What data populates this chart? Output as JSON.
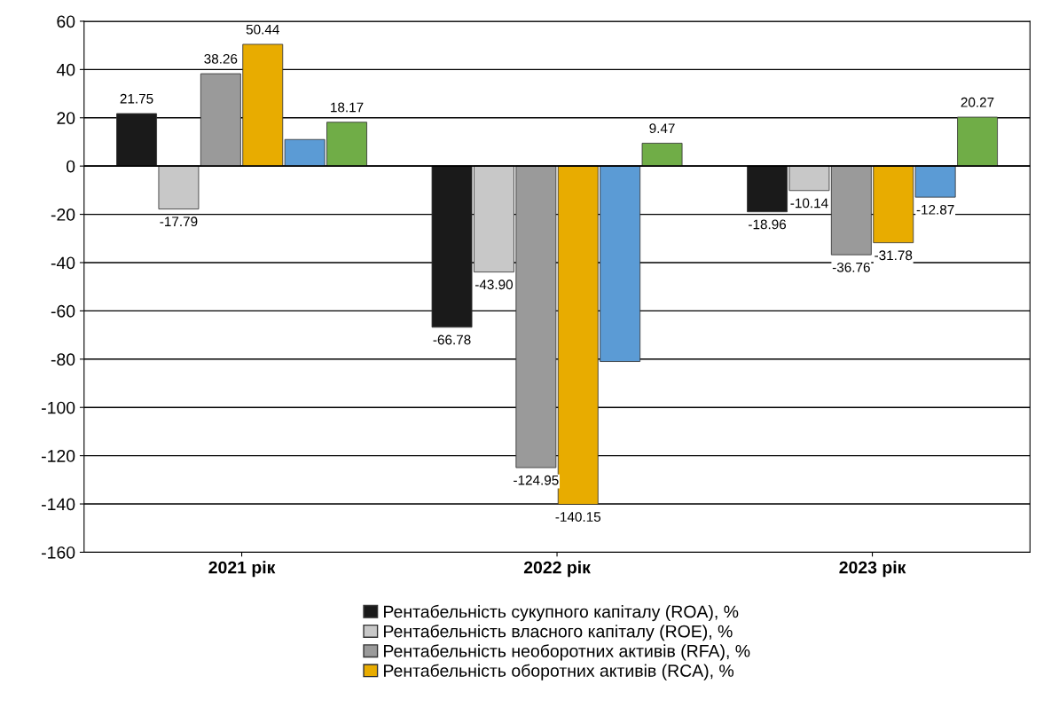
{
  "chart_data": {
    "type": "bar",
    "categories": [
      "2021 рік",
      "2022 рік",
      "2023 рік"
    ],
    "series": [
      {
        "name": "Рентабельність сукупного капіталу (ROA), %",
        "color": "#1a1a1a",
        "values": [
          21.75,
          -66.78,
          -18.96
        ],
        "value_labels": [
          "21.75",
          "-66.78",
          "-18.96"
        ]
      },
      {
        "name": "Рентабельність власного капіталу (ROE), %",
        "color": "#c8c8c8",
        "values": [
          -17.79,
          -43.9,
          -10.14
        ],
        "value_labels": [
          "-17.79",
          "-43.90",
          "-10.14"
        ]
      },
      {
        "name": "Рентабельність необоротних активів (RFA), %",
        "color": "#9a9a9a",
        "values": [
          38.26,
          -124.95,
          -36.76
        ],
        "value_labels": [
          "38.26",
          "-124.95",
          "-36.76"
        ]
      },
      {
        "name": "Рентабельність оборотних активів (RCA), %",
        "color": "#e8ac00",
        "values": [
          50.44,
          -140.15,
          -31.78
        ],
        "value_labels": [
          "50.44",
          "-140.15",
          "-31.78"
        ]
      },
      {
        "color": "#5b9bd5",
        "values": [
          11,
          -81,
          -12.87
        ],
        "value_labels": [
          null,
          null,
          "-12.87"
        ]
      },
      {
        "color": "#70ad47",
        "values": [
          18.17,
          9.47,
          20.27
        ],
        "value_labels": [
          "18.17",
          "9.47",
          "20.27"
        ]
      }
    ],
    "ylim": [
      -160,
      60
    ],
    "yticks": [
      -160,
      -140,
      -120,
      -100,
      -80,
      -60,
      -40,
      -20,
      0,
      20,
      40,
      60
    ],
    "grid": "y",
    "legend": "bottom"
  }
}
